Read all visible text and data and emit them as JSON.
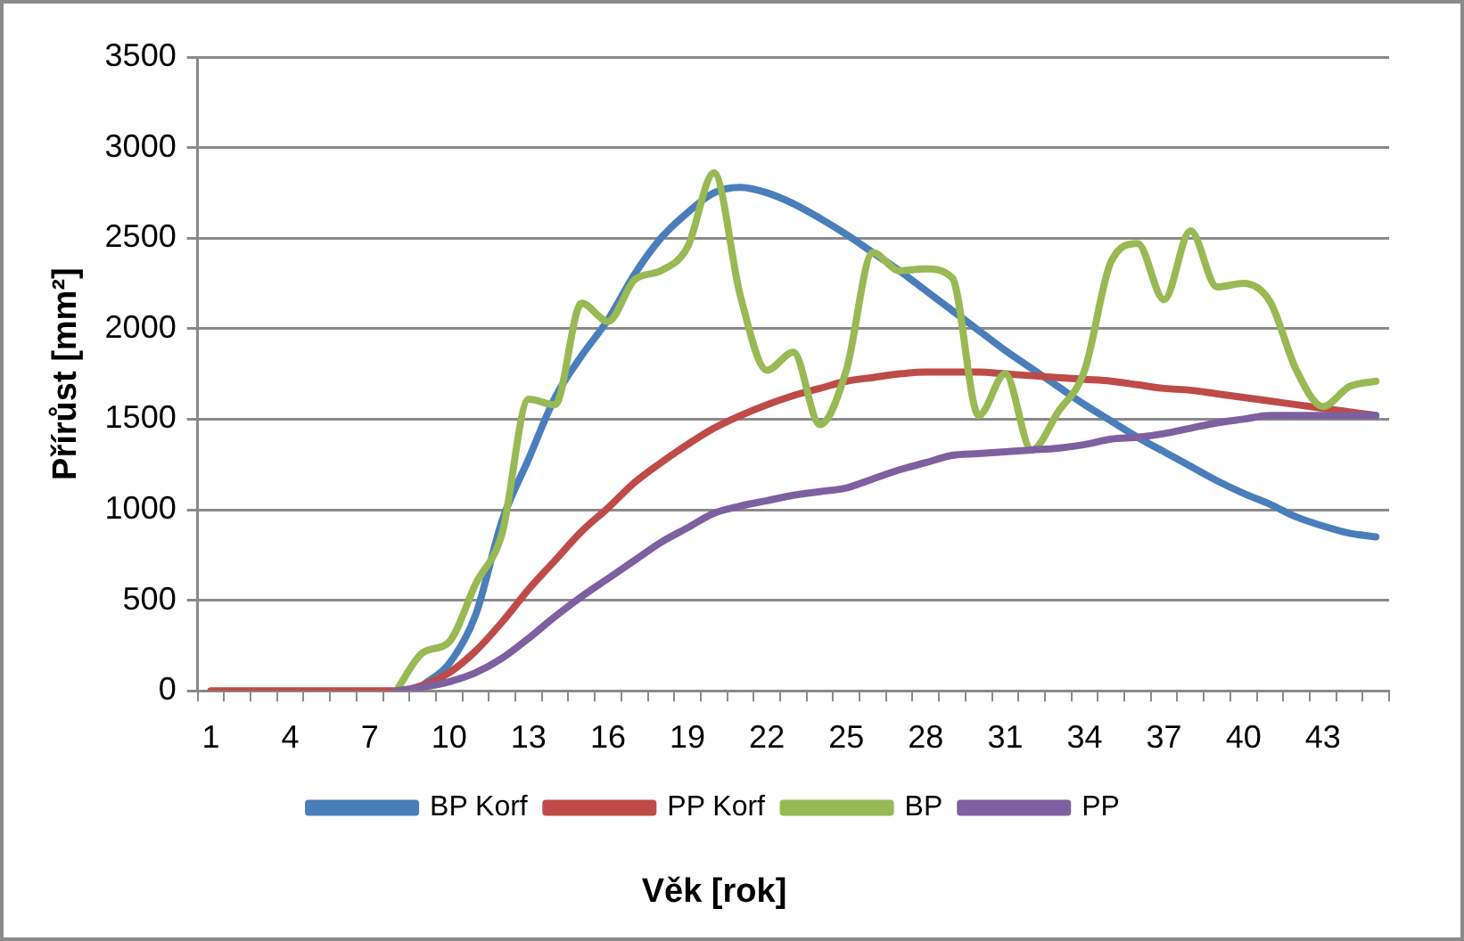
{
  "chart_data": {
    "type": "line",
    "xlabel": "Věk [rok]",
    "ylabel": "Přírůst [mm²]",
    "categories": [
      "1",
      null,
      null,
      "4",
      null,
      null,
      "7",
      null,
      null,
      "10",
      null,
      null,
      "13",
      null,
      null,
      "16",
      null,
      null,
      "19",
      null,
      null,
      "22",
      null,
      null,
      "25",
      null,
      null,
      "28",
      null,
      null,
      "31",
      null,
      null,
      "34",
      null,
      null,
      "37",
      null,
      null,
      "40",
      null,
      null,
      "43",
      null,
      null
    ],
    "ylim": [
      0,
      3500
    ],
    "yticks": [
      0,
      500,
      1000,
      1500,
      2000,
      2500,
      3000,
      3500
    ],
    "grid": "y",
    "legend": "bottom",
    "marker": "none",
    "series": [
      {
        "name": "BP Korf",
        "color": "#4a7ebb",
        "values": [
          null,
          null,
          null,
          null,
          null,
          null,
          null,
          null,
          30,
          150,
          420,
          940,
          1280,
          1620,
          1850,
          2050,
          2300,
          2500,
          2640,
          2750,
          2780,
          2750,
          2690,
          2610,
          2520,
          2420,
          2320,
          2210,
          2100,
          1990,
          1880,
          1780,
          1680,
          1580,
          1490,
          1400,
          1320,
          1240,
          1160,
          1090,
          1030,
          960,
          910,
          870,
          850
        ]
      },
      {
        "name": "PP Korf",
        "color": "#be4b48",
        "values": [
          0,
          0,
          0,
          0,
          0,
          0,
          0,
          0,
          30,
          100,
          220,
          380,
          560,
          720,
          880,
          1010,
          1150,
          1260,
          1360,
          1450,
          1520,
          1580,
          1630,
          1670,
          1710,
          1730,
          1750,
          1760,
          1760,
          1760,
          1750,
          1740,
          1730,
          1720,
          1710,
          1690,
          1670,
          1660,
          1640,
          1620,
          1600,
          1580,
          1560,
          1540,
          1520
        ]
      },
      {
        "name": "BP",
        "color": "#98b954",
        "values": [
          null,
          null,
          null,
          null,
          null,
          null,
          null,
          0,
          210,
          270,
          590,
          870,
          1610,
          1580,
          2140,
          2040,
          2270,
          2320,
          2450,
          2860,
          2180,
          1770,
          1870,
          1470,
          1770,
          2420,
          2320,
          2330,
          2280,
          1520,
          1750,
          1330,
          1540,
          1770,
          2370,
          2470,
          2160,
          2540,
          2230,
          2250,
          2150,
          1770,
          1570,
          1680,
          1710
        ]
      },
      {
        "name": "PP",
        "color": "#7d60a0",
        "values": [
          null,
          null,
          null,
          null,
          null,
          null,
          null,
          0,
          20,
          50,
          100,
          180,
          290,
          410,
          520,
          620,
          720,
          820,
          900,
          980,
          1020,
          1050,
          1080,
          1100,
          1120,
          1170,
          1220,
          1260,
          1300,
          1310,
          1320,
          1330,
          1340,
          1360,
          1390,
          1400,
          1420,
          1450,
          1480,
          1500,
          1520,
          1520,
          1520,
          1520,
          1520
        ]
      }
    ]
  }
}
